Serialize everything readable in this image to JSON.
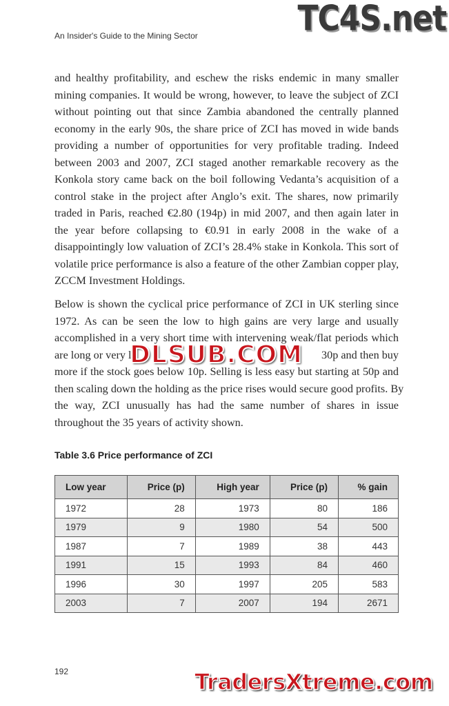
{
  "running_head": "An Insider's Guide to the Mining Sector",
  "paragraph1": [
    "and healthy profitability, and eschew the risks endemic in many smaller",
    "mining companies. It would be wrong, however, to leave the subject of ZCI",
    "without pointing out that since Zambia abandoned the centrally planned",
    "economy in the early 90s, the share price of ZCI has moved in wide bands",
    "providing a number of opportunities for very profitable trading. Indeed",
    "between 2003 and 2007, ZCI staged another remarkable recovery as the",
    "Konkola story came back on the boil following Vedanta’s acquisition of a",
    "control stake in the project after Anglo’s exit. The shares, now primarily",
    "traded in Paris, reached €2.80 (194p) in mid 2007, and then again later in",
    "the year before collapsing to €0.91 in early 2008 in the wake of a",
    "disappointingly low valuation of ZCI’s 28.4% stake in Konkola. This sort of",
    "volatile price performance is also a feature of the other Zambian copper play,",
    "ZCCM Investment Holdings."
  ],
  "paragraph2": [
    "Below is shown the cyclical price performance of ZCI in UK sterling since",
    "1972. As can be seen the low to high gains are very large and usually",
    "accomplished in a very short time with intervening weak/flat periods which",
    "are long or very l",
    "30p and then buy",
    "more if the stock goes below 10p. Selling is less easy but starting at 50p and",
    "then scaling down the holding as the price rises would secure good profits. By",
    "the way, ZCI unusually has had the same number of shares in issue",
    "throughout the 35 years of activity shown."
  ],
  "table": {
    "caption": "Table 3.6 Price performance of ZCI",
    "headers": [
      "Low year",
      "Price (p)",
      "High year",
      "Price (p)",
      "% gain"
    ],
    "rows": [
      [
        "1972",
        "28",
        "1973",
        "80",
        "186"
      ],
      [
        "1979",
        "9",
        "1980",
        "54",
        "500"
      ],
      [
        "1987",
        "7",
        "1989",
        "38",
        "443"
      ],
      [
        "1991",
        "15",
        "1993",
        "84",
        "460"
      ],
      [
        "1996",
        "30",
        "1997",
        "205",
        "583"
      ],
      [
        "2003",
        "7",
        "2007",
        "194",
        "2671"
      ]
    ]
  },
  "page_number": "192",
  "watermarks": {
    "top": "TC4S.net",
    "middle": "DLSUB.COM",
    "bottom": "TradersXtreme.com"
  },
  "colors": {
    "header_fill": "#d3d3d3",
    "alt_row_fill": "#e9e9e9",
    "watermark_red": "#c8161d"
  }
}
